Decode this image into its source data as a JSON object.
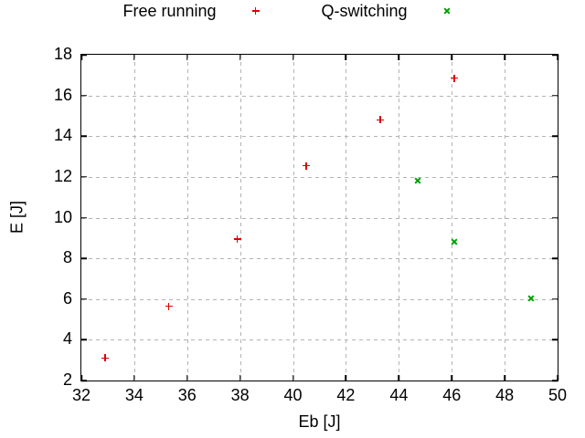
{
  "chart_data": {
    "type": "scatter",
    "title": "",
    "xlabel": "Eb [J]",
    "ylabel": "E [J]",
    "xlim": [
      32,
      50
    ],
    "ylim": [
      2,
      18
    ],
    "xticks": [
      32,
      34,
      36,
      38,
      40,
      42,
      44,
      46,
      48,
      50
    ],
    "yticks": [
      2,
      4,
      6,
      8,
      10,
      12,
      14,
      16,
      18
    ],
    "grid": true,
    "grid_color": "#b3b3b3",
    "frame_color": "#000000",
    "legend_position": "top-center-outside",
    "series": [
      {
        "name": "Free running",
        "marker": "plus",
        "color": "#dd0000",
        "points": [
          [
            32.9,
            3.1
          ],
          [
            35.3,
            5.65
          ],
          [
            37.9,
            8.95
          ],
          [
            40.5,
            12.55
          ],
          [
            43.3,
            14.8
          ],
          [
            46.1,
            16.85
          ]
        ]
      },
      {
        "name": "Q-switching",
        "marker": "cross",
        "color": "#00a000",
        "points": [
          [
            44.7,
            11.8
          ],
          [
            46.1,
            8.8
          ],
          [
            49.0,
            6.05
          ]
        ]
      }
    ]
  }
}
